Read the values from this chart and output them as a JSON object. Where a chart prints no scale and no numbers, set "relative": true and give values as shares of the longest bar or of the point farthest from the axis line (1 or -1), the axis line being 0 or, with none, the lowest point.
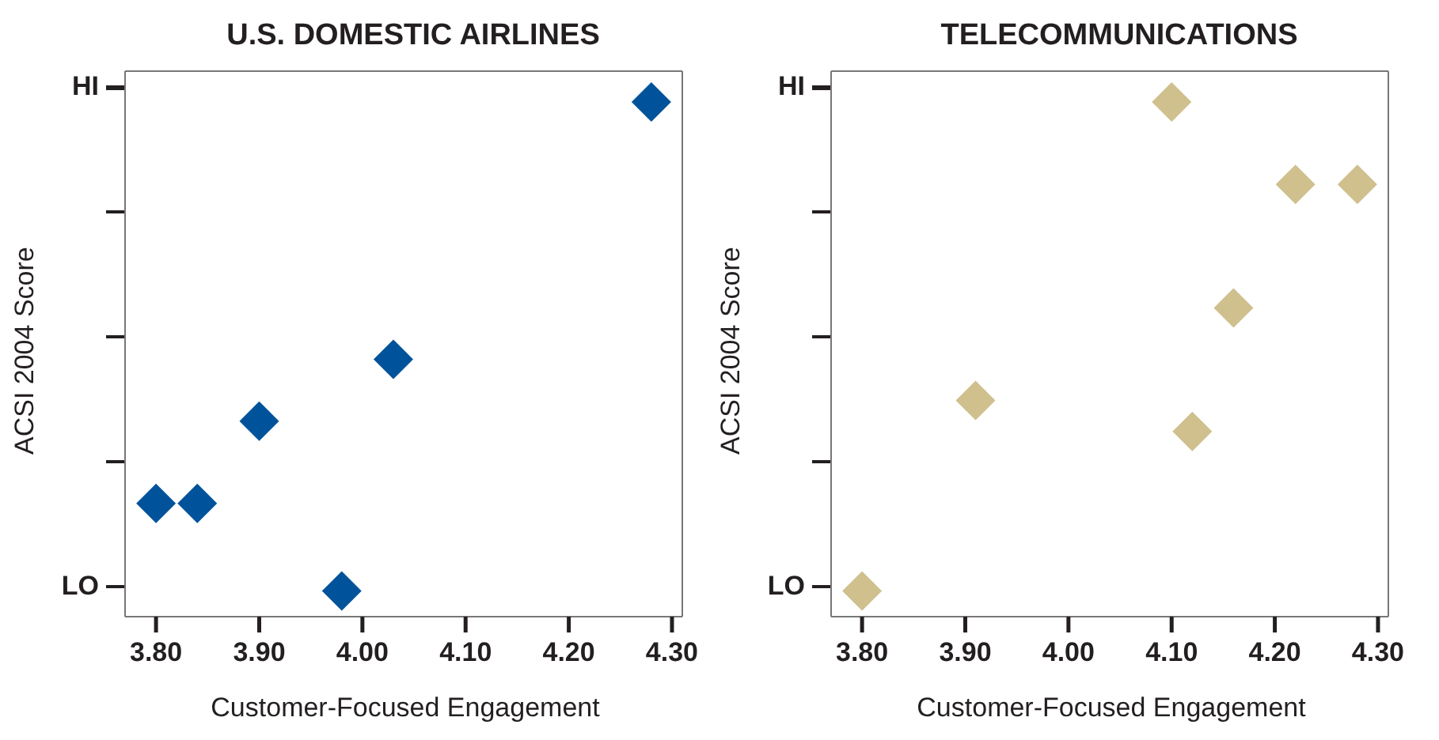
{
  "chart_data": [
    {
      "type": "scatter",
      "title": "U.S. DOMESTIC AIRLINES",
      "xlabel": "Customer-Focused Engagement",
      "ylabel": "ACSI 2004 Score",
      "marker": "diamond",
      "relative": true,
      "annotations": [
        "HI",
        "LO"
      ],
      "series": [
        {
          "color": "#00539b",
          "x": [
            3.8,
            3.84,
            3.9,
            3.98,
            4.03,
            4.28
          ],
          "values": [
            0.22,
            0.22,
            0.38,
            0.05,
            0.5,
            1
          ]
        }
      ],
      "xlim": [
        3.77,
        4.31
      ],
      "xticks": [
        {
          "value": 3.8,
          "label": "3.80"
        },
        {
          "value": 3.9,
          "label": "3.90"
        },
        {
          "value": 4.0,
          "label": "4.00"
        },
        {
          "value": 4.1,
          "label": "4.10"
        },
        {
          "value": 4.2,
          "label": "4.20"
        },
        {
          "value": 4.3,
          "label": "4.30"
        }
      ]
    },
    {
      "type": "scatter",
      "title": "TELECOMMUNICATIONS",
      "xlabel": "Customer-Focused Engagement",
      "ylabel": "ACSI 2004 Score",
      "marker": "diamond",
      "relative": true,
      "annotations": [
        "HI",
        "LO"
      ],
      "series": [
        {
          "color": "#cfc08e",
          "x": [
            3.8,
            3.91,
            4.1,
            4.12,
            4.16,
            4.22,
            4.28
          ],
          "values": [
            0.05,
            0.42,
            1,
            0.36,
            0.6,
            0.84,
            0.84
          ]
        }
      ],
      "xlim": [
        3.77,
        4.31
      ],
      "xticks": [
        {
          "value": 3.8,
          "label": "3.80"
        },
        {
          "value": 3.9,
          "label": "3.90"
        },
        {
          "value": 4.0,
          "label": "4.00"
        },
        {
          "value": 4.1,
          "label": "4.10"
        },
        {
          "value": 4.2,
          "label": "4.20"
        },
        {
          "value": 4.3,
          "label": "4.30"
        }
      ]
    }
  ]
}
